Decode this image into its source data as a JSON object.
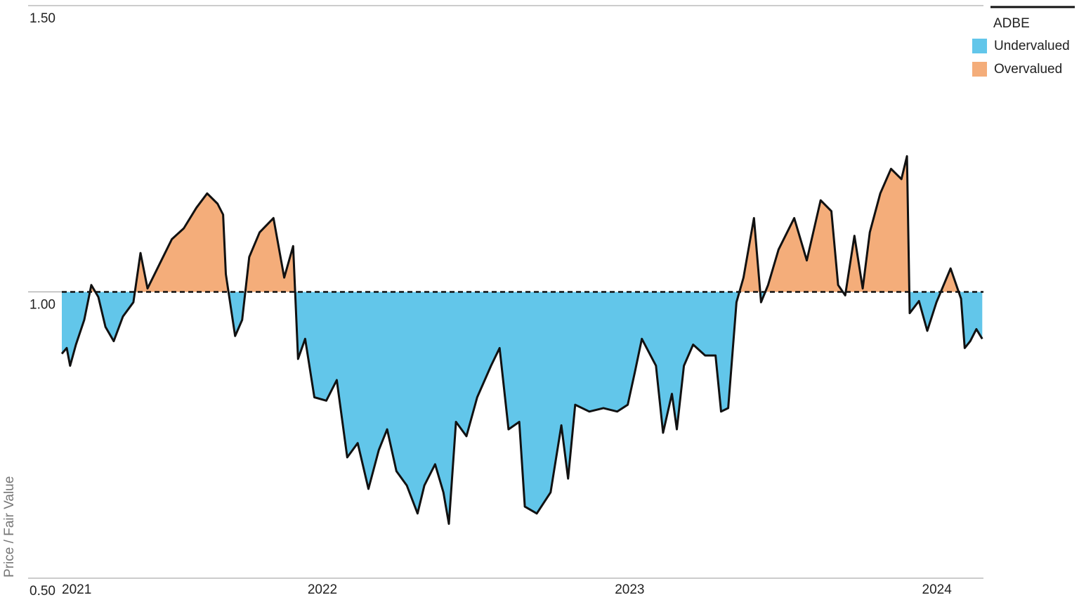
{
  "chart_data": {
    "type": "area",
    "y_label": "Price / Fair Value",
    "legend": {
      "title": "ADBE",
      "position": "top-right",
      "items": [
        {
          "name": "Undervalued",
          "color": "#62c6ea"
        },
        {
          "name": "Overvalued",
          "color": "#f4ad7a"
        }
      ]
    },
    "reference_line": 1.0,
    "grid": true,
    "xlim": [
      2021.2,
      2024.2
    ],
    "xticks": [
      {
        "value": 2021.2,
        "label": "2021"
      },
      2022,
      2023,
      2024
    ],
    "ylim": [
      0.5,
      1.5
    ],
    "yticks": [
      {
        "value": 0.5,
        "label": "0.50"
      },
      {
        "value": 1.0,
        "label": "1.00"
      },
      {
        "value": 1.5,
        "label": "1.50"
      }
    ],
    "x": [
      2021.2,
      2021.216,
      2021.227,
      2021.246,
      2021.273,
      2021.296,
      2021.319,
      2021.342,
      2021.369,
      2021.399,
      2021.433,
      2021.456,
      2021.479,
      2021.524,
      2021.558,
      2021.597,
      2021.638,
      2021.673,
      2021.707,
      2021.725,
      2021.734,
      2021.764,
      2021.787,
      2021.81,
      2021.844,
      2021.889,
      2021.924,
      2021.953,
      2021.969,
      2021.992,
      2022.022,
      2022.061,
      2022.095,
      2022.129,
      2022.163,
      2022.198,
      2022.232,
      2022.259,
      2022.289,
      2022.323,
      2022.358,
      2022.38,
      2022.415,
      2022.442,
      2022.46,
      2022.483,
      2022.517,
      2022.552,
      2022.597,
      2022.625,
      2022.654,
      2022.689,
      2022.707,
      2022.746,
      2022.791,
      2022.826,
      2022.848,
      2022.871,
      2022.917,
      2022.963,
      2023.008,
      2023.042,
      2023.065,
      2023.088,
      2023.134,
      2023.157,
      2023.186,
      2023.202,
      2023.225,
      2023.255,
      2023.294,
      2023.328,
      2023.346,
      2023.369,
      2023.396,
      2023.419,
      2023.453,
      2023.476,
      2023.499,
      2023.533,
      2023.584,
      2023.625,
      2023.67,
      2023.705,
      2023.727,
      2023.75,
      2023.78,
      2023.807,
      2023.83,
      2023.864,
      2023.899,
      2023.933,
      2023.951,
      2023.96,
      2023.99,
      2024.017,
      2024.047,
      2024.093,
      2024.127,
      2024.139,
      2024.157,
      2024.177,
      2024.196
    ],
    "series": [
      {
        "name": "ADBE",
        "color": "#111111",
        "values": [
          0.892,
          0.902,
          0.871,
          0.908,
          0.951,
          1.012,
          0.991,
          0.939,
          0.914,
          0.957,
          0.982,
          1.068,
          1.006,
          1.055,
          1.092,
          1.111,
          1.147,
          1.172,
          1.154,
          1.135,
          1.031,
          0.923,
          0.951,
          1.061,
          1.104,
          1.129,
          1.025,
          1.08,
          0.883,
          0.918,
          0.816,
          0.81,
          0.846,
          0.711,
          0.736,
          0.656,
          0.724,
          0.76,
          0.687,
          0.662,
          0.613,
          0.662,
          0.699,
          0.65,
          0.595,
          0.773,
          0.748,
          0.816,
          0.871,
          0.902,
          0.76,
          0.773,
          0.625,
          0.613,
          0.65,
          0.767,
          0.674,
          0.803,
          0.791,
          0.797,
          0.791,
          0.803,
          0.859,
          0.918,
          0.871,
          0.754,
          0.822,
          0.76,
          0.871,
          0.908,
          0.889,
          0.889,
          0.791,
          0.797,
          0.982,
          1.025,
          1.129,
          0.982,
          1.012,
          1.074,
          1.129,
          1.055,
          1.16,
          1.141,
          1.012,
          0.994,
          1.098,
          1.006,
          1.104,
          1.172,
          1.215,
          1.197,
          1.237,
          0.963,
          0.984,
          0.932,
          0.982,
          1.041,
          0.988,
          0.902,
          0.914,
          0.935,
          0.918
        ]
      }
    ]
  }
}
